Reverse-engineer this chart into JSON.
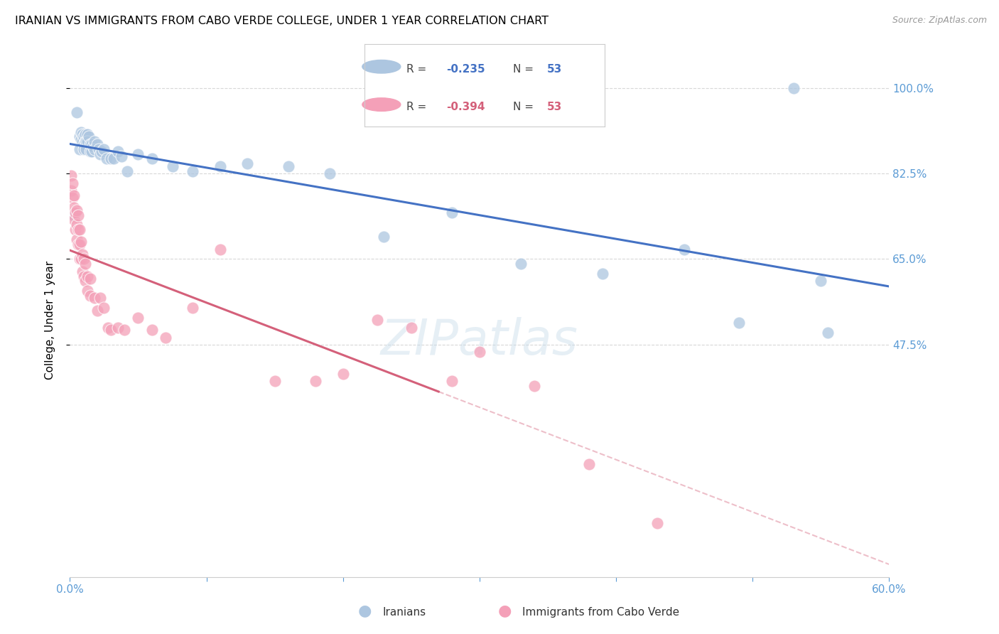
{
  "title": "IRANIAN VS IMMIGRANTS FROM CABO VERDE COLLEGE, UNDER 1 YEAR CORRELATION CHART",
  "source": "Source: ZipAtlas.com",
  "ylabel": "College, Under 1 year",
  "xlim": [
    0.0,
    0.6
  ],
  "ylim": [
    0.0,
    1.05
  ],
  "xtick_positions": [
    0.0,
    0.1,
    0.2,
    0.3,
    0.4,
    0.5,
    0.6
  ],
  "xticklabels": [
    "0.0%",
    "",
    "",
    "",
    "",
    "",
    "60.0%"
  ],
  "ytick_positions": [
    0.475,
    0.65,
    0.825,
    1.0
  ],
  "yticklabels": [
    "47.5%",
    "65.0%",
    "82.5%",
    "100.0%"
  ],
  "blue_R": "-0.235",
  "blue_N": "53",
  "pink_R": "-0.394",
  "pink_N": "53",
  "blue_dot_color": "#adc6e0",
  "blue_line_color": "#4472c4",
  "pink_dot_color": "#f4a0b8",
  "pink_line_color": "#d4607a",
  "axis_color": "#5b9bd5",
  "grid_color": "#d8d8d8",
  "background_color": "#ffffff",
  "watermark": "ZIPatlas",
  "legend_label_blue": "Iranians",
  "legend_label_pink": "Immigrants from Cabo Verde",
  "blue_x": [
    0.003,
    0.005,
    0.007,
    0.007,
    0.008,
    0.008,
    0.009,
    0.009,
    0.01,
    0.01,
    0.01,
    0.011,
    0.011,
    0.012,
    0.012,
    0.013,
    0.013,
    0.014,
    0.015,
    0.015,
    0.016,
    0.016,
    0.017,
    0.018,
    0.018,
    0.02,
    0.021,
    0.022,
    0.023,
    0.025,
    0.027,
    0.03,
    0.032,
    0.035,
    0.038,
    0.042,
    0.05,
    0.06,
    0.075,
    0.09,
    0.11,
    0.13,
    0.16,
    0.19,
    0.23,
    0.28,
    0.33,
    0.39,
    0.45,
    0.49,
    0.53,
    0.55,
    0.555
  ],
  "blue_y": [
    0.74,
    0.95,
    0.9,
    0.875,
    0.91,
    0.895,
    0.905,
    0.89,
    0.9,
    0.885,
    0.875,
    0.905,
    0.89,
    0.89,
    0.875,
    0.905,
    0.89,
    0.9,
    0.885,
    0.87,
    0.885,
    0.87,
    0.88,
    0.89,
    0.875,
    0.885,
    0.875,
    0.865,
    0.87,
    0.875,
    0.855,
    0.855,
    0.855,
    0.87,
    0.86,
    0.83,
    0.865,
    0.855,
    0.84,
    0.83,
    0.84,
    0.845,
    0.84,
    0.825,
    0.695,
    0.745,
    0.64,
    0.62,
    0.67,
    0.52,
    1.0,
    0.605,
    0.5
  ],
  "pink_x": [
    0.001,
    0.001,
    0.002,
    0.002,
    0.003,
    0.003,
    0.003,
    0.004,
    0.004,
    0.005,
    0.005,
    0.005,
    0.006,
    0.006,
    0.006,
    0.007,
    0.007,
    0.007,
    0.008,
    0.008,
    0.009,
    0.009,
    0.01,
    0.01,
    0.011,
    0.011,
    0.013,
    0.013,
    0.015,
    0.015,
    0.018,
    0.02,
    0.022,
    0.025,
    0.028,
    0.03,
    0.035,
    0.04,
    0.05,
    0.06,
    0.07,
    0.09,
    0.11,
    0.15,
    0.18,
    0.2,
    0.225,
    0.25,
    0.28,
    0.3,
    0.34,
    0.38,
    0.43
  ],
  "pink_y": [
    0.82,
    0.79,
    0.805,
    0.775,
    0.78,
    0.755,
    0.73,
    0.745,
    0.71,
    0.75,
    0.72,
    0.69,
    0.74,
    0.71,
    0.68,
    0.71,
    0.68,
    0.65,
    0.685,
    0.65,
    0.66,
    0.625,
    0.65,
    0.615,
    0.64,
    0.605,
    0.615,
    0.585,
    0.61,
    0.575,
    0.57,
    0.545,
    0.57,
    0.55,
    0.51,
    0.505,
    0.51,
    0.505,
    0.53,
    0.505,
    0.49,
    0.55,
    0.67,
    0.4,
    0.4,
    0.415,
    0.525,
    0.51,
    0.4,
    0.46,
    0.39,
    0.23,
    0.11
  ]
}
